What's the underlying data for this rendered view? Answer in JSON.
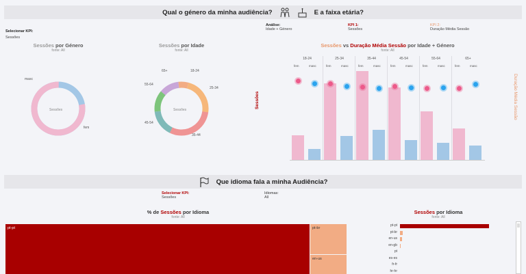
{
  "banner1": {
    "left_text": "Qual o género da minha audiência?",
    "right_text": "E a faixa etária?"
  },
  "controls1": {
    "select_kpi_label": "Selecionar KPI:",
    "select_kpi_value": "Sessões",
    "analysis_label": "Análise:",
    "analysis_value": "Idade + Género",
    "kpi1_label": "KPI 1:",
    "kpi1_value": "Sessões",
    "kpi2_label": "KPI 2:",
    "kpi2_value": "Duração Média Sessão"
  },
  "gender_chart": {
    "title_pre": "Sessões",
    "title_post": " por Género",
    "source": "fonte: All",
    "center": "Sessões",
    "label_masc": "masc",
    "label_fem": "fem"
  },
  "age_chart": {
    "title_pre": "Sessões",
    "title_post": " por Idade",
    "source": "fonte: All",
    "center": "Sessões",
    "labels": [
      "65+",
      "18-24",
      "25-34",
      "55-64",
      "45-54",
      "35-44"
    ]
  },
  "combo_chart": {
    "title_a": "Sessões",
    "title_vs": " vs ",
    "title_b": "Duração Média Sessão",
    "title_c": " por Idade + Género",
    "source": "fonte: All",
    "left_axis": "Sessões",
    "right_axis": "Duração Média Sessão",
    "sub_fem": "fem",
    "sub_masc": "masc"
  },
  "banner2": {
    "text": "Que idioma fala a minha Audiência?"
  },
  "controls2": {
    "select_kpi_label": "Selecionar KPI:",
    "select_kpi_value": "Sessões",
    "languages_label": "Idiomas:",
    "languages_value": "All"
  },
  "treemap": {
    "title_pre": "% de ",
    "title_kpi": "Sessões",
    "title_post": " por Idioma",
    "source": "fonte: All",
    "cells": [
      "pt-pt",
      "pt-br",
      "en-us"
    ]
  },
  "lang_bar": {
    "title_kpi": "Sessões",
    "title_post": " por Idioma",
    "source": "fonte: All",
    "langs": [
      "pt-pt",
      "pt-br",
      "en-us",
      "en-gb",
      "pt",
      "es-es",
      "fr-fr",
      "hr-hr"
    ]
  },
  "colors": {
    "pink": "#f0b8cf",
    "blue": "#a3c7e6",
    "dark_red": "#a80000",
    "salmon": "#f2ac84",
    "accent_orange": "#e8976a"
  },
  "chart_data": [
    {
      "type": "pie",
      "title": "Sessões por Género",
      "categories": [
        "fem",
        "masc"
      ],
      "values": [
        78,
        22
      ]
    },
    {
      "type": "pie",
      "title": "Sessões por Idade",
      "categories": [
        "18-24",
        "25-34",
        "35-44",
        "45-54",
        "55-64",
        "65+"
      ],
      "values": [
        6,
        23,
        30,
        16,
        13,
        12
      ]
    },
    {
      "type": "bar",
      "title": "Sessões vs Duração Média Sessão por Idade + Género",
      "categories": [
        "18-24 fem",
        "18-24 masc",
        "25-34 fem",
        "25-34 masc",
        "35-44 fem",
        "35-44 masc",
        "45-54 fem",
        "45-54 masc",
        "55-64 fem",
        "55-64 masc",
        "65+ fem",
        "65+ masc"
      ],
      "series": [
        {
          "name": "Sessões",
          "values": [
            35,
            15,
            108,
            34,
            125,
            42,
            102,
            28,
            68,
            24,
            44,
            20
          ]
        },
        {
          "name": "Duração Média Sessão",
          "values": [
            87,
            82,
            82,
            78,
            77,
            75,
            78,
            76,
            74,
            76,
            74,
            81
          ]
        }
      ]
    },
    {
      "type": "bar",
      "title": "Sessões por Idioma",
      "categories": [
        "pt-pt",
        "pt-br",
        "en-us",
        "en-gb",
        "pt",
        "es-es",
        "fr-fr",
        "hr-hr"
      ],
      "values": [
        100,
        3,
        2,
        1,
        0.4,
        0.3,
        0.2,
        0.1
      ]
    }
  ]
}
